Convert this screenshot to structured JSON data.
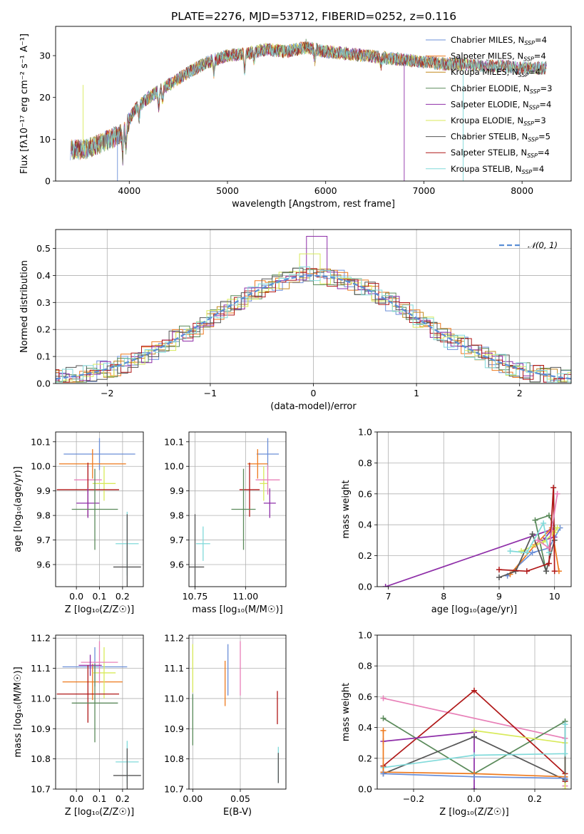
{
  "figure": {
    "title": "PLATE=2276, MJD=53712, FIBERID=0252, z=0.116"
  },
  "colors": {
    "Chabrier MILES": "#6b8fd8",
    "Salpeter MILES": "#ee7a1e",
    "Kroupa MILES": "#c2881e",
    "Chabrier ELODIE": "#5a8a5a",
    "Salpeter ELODIE": "#8e2ea8",
    "Kroupa ELODIE": "#d8ea5a",
    "Chabrier STELIB": "#555555",
    "Salpeter STELIB": "#b01818",
    "Kroupa STELIB": "#80dada",
    "pink": "#e880b8",
    "gauss": "#5b8fd6"
  },
  "chart_data": [
    {
      "id": "spectrum",
      "type": "line",
      "xlabel": "wavelength [Angstrom, rest frame]",
      "ylabel": "Flux [fλ10⁻¹⁷ erg cm⁻² s⁻¹ A⁻¹]",
      "xlim": [
        3250,
        8500
      ],
      "ylim": [
        0,
        37
      ],
      "xticks": [
        4000,
        5000,
        6000,
        7000,
        8000
      ],
      "yticks": [
        0,
        10,
        20,
        30
      ],
      "grid": false,
      "legend_position": "right",
      "continuum_x": [
        3400,
        3550,
        3700,
        3850,
        3950,
        4050,
        4200,
        4400,
        4600,
        4800,
        5000,
        5200,
        5400,
        5600,
        5800,
        6000,
        6200,
        6400,
        6600,
        6800,
        7000,
        7200,
        7400,
        7600,
        7800,
        8000,
        8200,
        8250
      ],
      "continuum_y": [
        7.5,
        7.5,
        9,
        10.5,
        12,
        17,
        20,
        23,
        26,
        28.5,
        30,
        30.5,
        31.5,
        31,
        32,
        31,
        30.5,
        30,
        29.5,
        29,
        28.5,
        28,
        28,
        27.5,
        27.5,
        27,
        27,
        27
      ],
      "spikes": [
        [
          3530,
          23
        ],
        [
          3880,
          0
        ],
        [
          6800,
          0
        ],
        [
          7400,
          0
        ],
        [
          5800,
          34
        ]
      ],
      "series": [
        {
          "label": "Chabrier MILES, N",
          "sub": "SSP",
          "suffix": "=4"
        },
        {
          "label": "Salpeter MILES, N",
          "sub": "SSP",
          "suffix": "=4"
        },
        {
          "label": "Kroupa MILES, N",
          "sub": "SSP",
          "suffix": "=4"
        },
        {
          "label": "Chabrier ELODIE, N",
          "sub": "SSP",
          "suffix": "=3"
        },
        {
          "label": "Salpeter ELODIE, N",
          "sub": "SSP",
          "suffix": "=4"
        },
        {
          "label": "Kroupa ELODIE, N",
          "sub": "SSP",
          "suffix": "=3"
        },
        {
          "label": "Chabrier STELIB, N",
          "sub": "SSP",
          "suffix": "=5"
        },
        {
          "label": "Salpeter STELIB, N",
          "sub": "SSP",
          "suffix": "=4"
        },
        {
          "label": "Kroupa STELIB, N",
          "sub": "SSP",
          "suffix": "=4"
        }
      ]
    },
    {
      "id": "residuals",
      "type": "histogram",
      "xlabel": "(data-model)/error",
      "ylabel": "Normed distribution",
      "xlim": [
        -2.5,
        2.5
      ],
      "ylim": [
        0,
        0.57
      ],
      "xticks": [
        -2,
        -1,
        0,
        1,
        2
      ],
      "yticks": [
        0.0,
        0.1,
        0.2,
        0.3,
        0.4,
        0.5
      ],
      "grid": true,
      "legend_position": "upper right",
      "legend_label": "𝒩(0, 1)",
      "bin_width": 0.1,
      "peak_values": {
        "Salpeter ELODIE": 0.545,
        "Kroupa ELODIE": 0.48
      }
    },
    {
      "id": "age_vs_Z",
      "type": "errorbar",
      "xlabel": "Z [log₁₀(Z/Z☉)]",
      "ylabel": "age  [log₁₀(age/yr)]",
      "xlim": [
        -0.09,
        0.29
      ],
      "ylim": [
        9.51,
        10.14
      ],
      "xticks": [
        0.0,
        0.1,
        0.2
      ],
      "yticks": [
        9.6,
        9.7,
        9.8,
        9.9,
        10.0,
        10.1
      ],
      "grid": true,
      "points": [
        {
          "c": "Chabrier MILES",
          "x": 0.1,
          "xe": 0.155,
          "y": 10.05,
          "ye": 0.065
        },
        {
          "c": "Salpeter MILES",
          "x": 0.07,
          "xe": 0.145,
          "y": 10.01,
          "ye": 0.06
        },
        {
          "c": "Kroupa ELODIE",
          "x": 0.12,
          "xe": 0.05,
          "y": 9.93,
          "ye": 0.07
        },
        {
          "c": "pink",
          "x": 0.05,
          "xe": 0.06,
          "y": 9.945,
          "ye": 0.06
        },
        {
          "c": "Salpeter STELIB",
          "x": 0.05,
          "xe": 0.135,
          "y": 9.905,
          "ye": 0.11
        },
        {
          "c": "Salpeter ELODIE",
          "x": 0.05,
          "xe": 0.05,
          "y": 9.85,
          "ye": 0.06
        },
        {
          "c": "Chabrier ELODIE",
          "x": 0.08,
          "xe": 0.1,
          "y": 9.825,
          "ye": 0.165
        },
        {
          "c": "Kroupa STELIB",
          "x": 0.22,
          "xe": 0.05,
          "y": 9.685,
          "ye": 0.13
        },
        {
          "c": "Chabrier STELIB",
          "x": 0.22,
          "xe": 0.06,
          "y": 9.59,
          "ye": 0.215
        }
      ]
    },
    {
      "id": "age_vs_mass",
      "type": "errorbar",
      "xlabel": "mass [log₁₀(M/M☉)]",
      "ylabel": "",
      "xlim": [
        10.72,
        11.2
      ],
      "ylim": [
        9.51,
        10.14
      ],
      "xticks": [
        10.75,
        11.0
      ],
      "yticks": [
        9.6,
        9.7,
        9.8,
        9.9,
        10.0,
        10.1
      ],
      "grid": true,
      "points": [
        {
          "c": "Chabrier MILES",
          "x": 11.11,
          "xe": 0.055,
          "y": 10.05,
          "ye": 0.065
        },
        {
          "c": "Salpeter MILES",
          "x": 11.06,
          "xe": 0.05,
          "y": 10.01,
          "ye": 0.06
        },
        {
          "c": "Kroupa ELODIE",
          "x": 11.09,
          "xe": 0.02,
          "y": 9.93,
          "ye": 0.07
        },
        {
          "c": "pink",
          "x": 11.11,
          "xe": 0.06,
          "y": 9.945,
          "ye": 0.06
        },
        {
          "c": "Salpeter STELIB",
          "x": 11.02,
          "xe": 0.05,
          "y": 9.905,
          "ye": 0.11
        },
        {
          "c": "Salpeter ELODIE",
          "x": 11.12,
          "xe": 0.03,
          "y": 9.85,
          "ye": 0.06
        },
        {
          "c": "Chabrier ELODIE",
          "x": 10.99,
          "xe": 0.06,
          "y": 9.825,
          "ye": 0.165
        },
        {
          "c": "Kroupa STELIB",
          "x": 10.79,
          "xe": 0.035,
          "y": 9.685,
          "ye": 0.07
        },
        {
          "c": "Chabrier STELIB",
          "x": 10.75,
          "xe": 0.045,
          "y": 9.59,
          "ye": 0.215
        }
      ]
    },
    {
      "id": "weight_vs_age",
      "type": "line",
      "xlabel": "age  [log₁₀(age/yr)]",
      "ylabel": "mass weight",
      "xlim": [
        6.8,
        10.3
      ],
      "ylim": [
        0,
        1.0
      ],
      "xticks": [
        7,
        8,
        9,
        10
      ],
      "yticks": [
        0.0,
        0.2,
        0.4,
        0.6,
        0.8,
        1.0
      ],
      "grid": true,
      "series": [
        {
          "c": "Salpeter ELODIE",
          "x": [
            6.95,
            9.95,
            9.8,
            10.0
          ],
          "y": [
            0.0,
            0.37,
            0.3,
            0.32
          ]
        },
        {
          "c": "Chabrier MILES",
          "x": [
            9.15,
            9.6,
            9.9,
            10.1
          ],
          "y": [
            0.07,
            0.22,
            0.25,
            0.38
          ]
        },
        {
          "c": "Salpeter MILES",
          "x": [
            9.2,
            9.65,
            9.95,
            10.08
          ],
          "y": [
            0.08,
            0.27,
            0.38,
            0.1
          ]
        },
        {
          "c": "Chabrier ELODIE",
          "x": [
            9.85,
            9.65,
            9.9,
            10.0
          ],
          "y": [
            0.1,
            0.43,
            0.46,
            0.38
          ]
        },
        {
          "c": "Kroupa ELODIE",
          "x": [
            9.4,
            9.8,
            10.0,
            10.05
          ],
          "y": [
            0.23,
            0.29,
            0.35,
            0.38
          ]
        },
        {
          "c": "Chabrier STELIB",
          "x": [
            9.0,
            9.3,
            9.6,
            9.85,
            10.0
          ],
          "y": [
            0.06,
            0.1,
            0.34,
            0.1,
            0.3
          ]
        },
        {
          "c": "Salpeter STELIB",
          "x": [
            9.0,
            9.5,
            9.9,
            9.98,
            10.0
          ],
          "y": [
            0.11,
            0.1,
            0.15,
            0.64,
            0.1
          ]
        },
        {
          "c": "Kroupa STELIB",
          "x": [
            9.2,
            9.5,
            9.8,
            9.9
          ],
          "y": [
            0.23,
            0.22,
            0.41,
            0.22
          ]
        },
        {
          "c": "pink",
          "x": [
            9.7,
            9.9,
            10.05
          ],
          "y": [
            0.3,
            0.25,
            0.6
          ]
        }
      ]
    },
    {
      "id": "mass_vs_Z",
      "type": "errorbar",
      "xlabel": "Z [log₁₀(Z/Z☉)]",
      "ylabel": "mass [log₁₀(M/M☉)]",
      "xlim": [
        -0.09,
        0.29
      ],
      "ylim": [
        10.7,
        11.21
      ],
      "xticks": [
        0.0,
        0.1,
        0.2
      ],
      "yticks": [
        10.7,
        10.8,
        10.9,
        11.0,
        11.1,
        11.2
      ],
      "grid": true,
      "points": [
        {
          "c": "Chabrier MILES",
          "x": 0.08,
          "xe": 0.14,
          "y": 11.105,
          "ye": 0.065
        },
        {
          "c": "Salpeter MILES",
          "x": 0.07,
          "xe": 0.13,
          "y": 11.055,
          "ye": 0.06
        },
        {
          "c": "Kroupa ELODIE",
          "x": 0.12,
          "xe": 0.05,
          "y": 11.085,
          "ye": 0.085
        },
        {
          "c": "pink",
          "x": 0.1,
          "xe": 0.08,
          "y": 11.12,
          "ye": 0.07
        },
        {
          "c": "Salpeter ELODIE",
          "x": 0.06,
          "xe": 0.05,
          "y": 11.11,
          "ye": 0.035
        },
        {
          "c": "Salpeter STELIB",
          "x": 0.05,
          "xe": 0.135,
          "y": 11.015,
          "ye": 0.095
        },
        {
          "c": "Chabrier ELODIE",
          "x": 0.08,
          "xe": 0.1,
          "y": 10.985,
          "ye": 0.13
        },
        {
          "c": "Kroupa STELIB",
          "x": 0.22,
          "xe": 0.05,
          "y": 10.79,
          "ye": 0.07
        },
        {
          "c": "Chabrier STELIB",
          "x": 0.22,
          "xe": 0.06,
          "y": 10.745,
          "ye": 0.09
        }
      ]
    },
    {
      "id": "mass_vs_EBV",
      "type": "errorbar",
      "xlabel": "E(B-V)",
      "ylabel": "",
      "xlim": [
        -0.004,
        0.098
      ],
      "ylim": [
        10.7,
        11.21
      ],
      "xticks": [
        0.0,
        0.05
      ],
      "yticks": [
        10.7,
        10.8,
        10.9,
        11.0,
        11.1,
        11.2
      ],
      "grid": true,
      "points": [
        {
          "c": "Kroupa ELODIE",
          "x": 0.0,
          "xe": 0,
          "y": 11.1,
          "ye": 0.08
        },
        {
          "c": "Chabrier ELODIE",
          "x": 0.0,
          "xe": 0,
          "y": 10.93,
          "ye": 0.085
        },
        {
          "c": "Chabrier MILES",
          "x": 0.037,
          "xe": 0,
          "y": 11.095,
          "ye": 0.085
        },
        {
          "c": "Salpeter MILES",
          "x": 0.034,
          "xe": 0,
          "y": 11.05,
          "ye": 0.075
        },
        {
          "c": "pink",
          "x": 0.05,
          "xe": 0,
          "y": 11.1,
          "ye": 0.09
        },
        {
          "c": "Salpeter STELIB",
          "x": 0.089,
          "xe": 0,
          "y": 10.97,
          "ye": 0.055
        },
        {
          "c": "Kroupa STELIB",
          "x": 0.09,
          "xe": 0,
          "y": 10.78,
          "ye": 0.06
        },
        {
          "c": "Chabrier STELIB",
          "x": 0.09,
          "xe": 0,
          "y": 10.77,
          "ye": 0.05
        }
      ]
    },
    {
      "id": "weight_vs_Z",
      "type": "line",
      "xlabel": "Z [log₁₀(Z/Z☉)]",
      "ylabel": "mass weight",
      "xlim": [
        -0.32,
        0.32
      ],
      "ylim": [
        0,
        1.0
      ],
      "xticks": [
        -0.2,
        0.0,
        0.2
      ],
      "yticks": [
        0.0,
        0.2,
        0.4,
        0.6,
        0.8,
        1.0
      ],
      "grid": true,
      "series": [
        {
          "c": "pink",
          "x": [
            -0.3,
            0.3,
            0.3
          ],
          "y": [
            0.59,
            0.33,
            0.02
          ]
        },
        {
          "c": "Chabrier ELODIE",
          "x": [
            -0.3,
            0.0,
            0.3,
            0.3
          ],
          "y": [
            0.46,
            0.1,
            0.44,
            0.42
          ]
        },
        {
          "c": "Salpeter STELIB",
          "x": [
            -0.3,
            0.0,
            0.3,
            0.3
          ],
          "y": [
            0.15,
            0.64,
            0.1,
            0.05
          ]
        },
        {
          "c": "Salpeter ELODIE",
          "x": [
            -0.3,
            0.0,
            0.0
          ],
          "y": [
            0.31,
            0.37,
            0.0
          ]
        },
        {
          "c": "Kroupa ELODIE",
          "x": [
            0.0,
            0.3,
            0.3
          ],
          "y": [
            0.38,
            0.3,
            0.0
          ]
        },
        {
          "c": "Chabrier STELIB",
          "x": [
            -0.3,
            0.0,
            0.3,
            0.3
          ],
          "y": [
            0.1,
            0.34,
            0.06,
            0.42
          ]
        },
        {
          "c": "Kroupa STELIB",
          "x": [
            -0.3,
            0.0,
            0.3,
            0.3
          ],
          "y": [
            0.14,
            0.22,
            0.23,
            0.42
          ]
        },
        {
          "c": "Salpeter MILES",
          "x": [
            -0.3,
            -0.3,
            0.0,
            0.3
          ],
          "y": [
            0.38,
            0.11,
            0.1,
            0.08
          ]
        },
        {
          "c": "Chabrier MILES",
          "x": [
            -0.3,
            0.0,
            0.3
          ],
          "y": [
            0.1,
            0.08,
            0.07
          ]
        }
      ]
    }
  ]
}
